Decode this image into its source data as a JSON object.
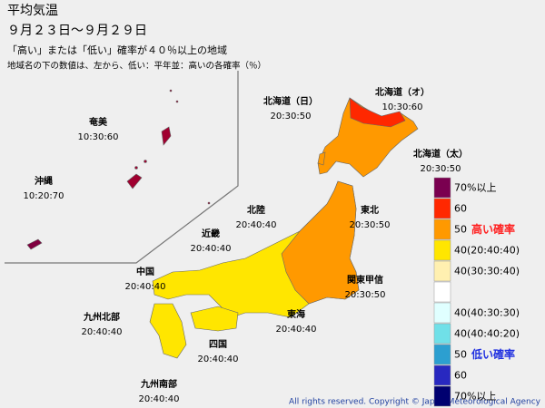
{
  "title": "平均気温",
  "period": "９月２３日～９月２９日",
  "subtitle": "「高い」または「低い」確率が４０％以上の地域",
  "note": "地域名の下の数値は、左から、低い：平年並：高いの各確率（％）",
  "regions": [
    {
      "name": "奄美",
      "probs": "10:30:60"
    },
    {
      "name": "沖縄",
      "probs": "10:20:70"
    },
    {
      "name": "北海道（日）",
      "probs": "20:30:50"
    },
    {
      "name": "北海道（オ）",
      "probs": "10:30:60"
    },
    {
      "name": "北海道（太）",
      "probs": "20:30:50"
    },
    {
      "name": "東北",
      "probs": "20:30:50"
    },
    {
      "name": "北陸",
      "probs": "20:40:40"
    },
    {
      "name": "近畿",
      "probs": "20:40:40"
    },
    {
      "name": "中国",
      "probs": "20:40:40"
    },
    {
      "name": "関東甲信",
      "probs": "20:30:50"
    },
    {
      "name": "東海",
      "probs": "20:40:40"
    },
    {
      "name": "九州北部",
      "probs": "20:40:40"
    },
    {
      "name": "四国",
      "probs": "20:40:40"
    },
    {
      "name": "九州南部",
      "probs": "20:40:40"
    }
  ],
  "legend": [
    {
      "label": "70%以上",
      "color": "#7a0050"
    },
    {
      "label": "60",
      "color": "#ff2800"
    },
    {
      "label": "50",
      "color": "#ff9900"
    },
    {
      "label": "40(20:40:40)",
      "color": "#ffe600"
    },
    {
      "label": "40(30:30:40)",
      "color": "#fff0b0"
    },
    {
      "color": "#ffffff"
    },
    {
      "label": "40(40:30:30)",
      "color": "#e0ffff"
    },
    {
      "label": "40(40:40:20)",
      "color": "#70e0e8"
    },
    {
      "label": "50",
      "color": "#2c9fd0"
    },
    {
      "label": "60",
      "color": "#2828c0"
    },
    {
      "label": "70%以上",
      "color": "#000070"
    }
  ],
  "legend_notes": {
    "high": "高い確率",
    "low": "低い確率"
  },
  "copyright": "All rights reserved. Copyright © Japan Meteorological Agency"
}
